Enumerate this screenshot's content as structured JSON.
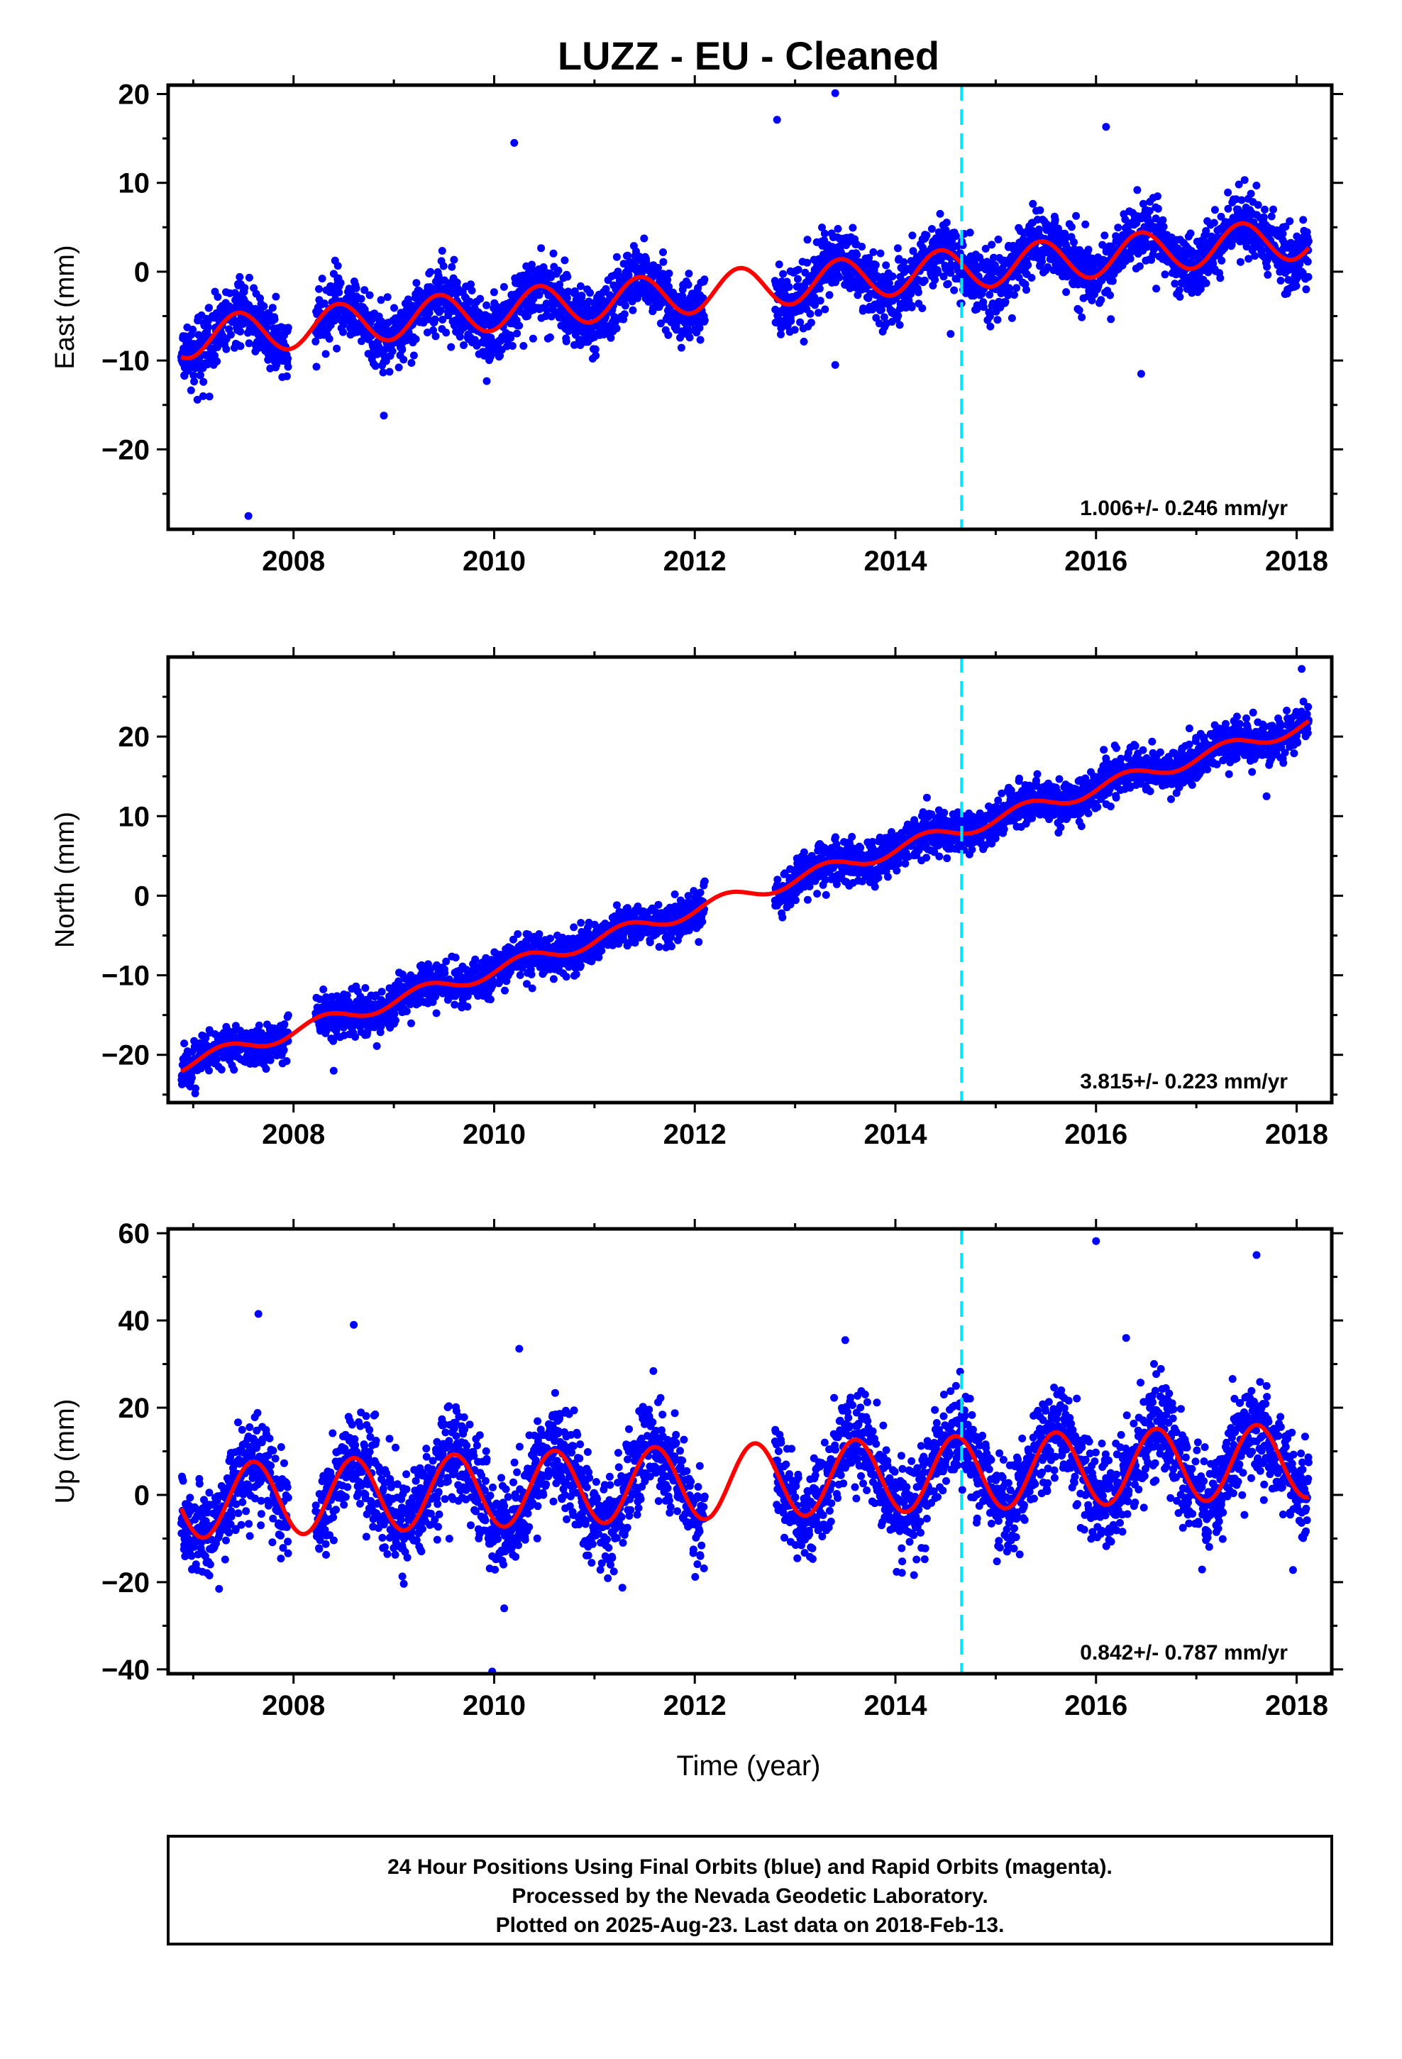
{
  "title": "LUZZ  - EU - Cleaned",
  "colors": {
    "observations": "#0000ff",
    "model": "#ff0000",
    "marker": "#00e5ff",
    "frame": "#000000"
  },
  "chart_data": [
    {
      "type": "scatter",
      "component": "East",
      "ylabel": "East (mm)",
      "xlim": [
        2006.75,
        2018.35
      ],
      "ylim": [
        -29,
        21
      ],
      "yticks": [
        -20,
        -10,
        0,
        10,
        20
      ],
      "xticks": [
        2008,
        2010,
        2012,
        2014,
        2016,
        2018
      ],
      "rate_label": "1.006+/- 0.246 mm/yr",
      "vertical_line_x": 2014.66,
      "model": {
        "base": -7.5,
        "rate": 1.006,
        "amplitude": 2.3,
        "peak_year_fraction": 0.45
      },
      "data_segments": [
        [
          2006.88,
          2007.95
        ],
        [
          2008.22,
          2012.1
        ],
        [
          2012.8,
          2018.12
        ]
      ],
      "noise_sd": 1.8,
      "outliers": [
        [
          2007.55,
          -27.5
        ],
        [
          2012.82,
          17.1
        ],
        [
          2013.4,
          20.1
        ],
        [
          2010.2,
          14.5
        ],
        [
          2016.1,
          16.3
        ],
        [
          2016.45,
          -11.5
        ],
        [
          2013.4,
          -10.5
        ],
        [
          2014.55,
          -7
        ],
        [
          2008.9,
          -16.2
        ]
      ]
    },
    {
      "type": "scatter",
      "component": "North",
      "ylabel": "North (mm)",
      "xlim": [
        2006.75,
        2018.35
      ],
      "ylim": [
        -26,
        30
      ],
      "yticks": [
        -20,
        -10,
        0,
        10,
        20
      ],
      "xticks": [
        2008,
        2010,
        2012,
        2014,
        2016,
        2018
      ],
      "rate_label": "3.815+/- 0.223 mm/yr",
      "vertical_line_x": 2014.66,
      "model": {
        "base": -21.3,
        "rate": 3.815,
        "amplitude": 0.9,
        "peak_year_fraction": 0.3
      },
      "data_segments": [
        [
          2006.88,
          2007.95
        ],
        [
          2008.22,
          2012.1
        ],
        [
          2012.8,
          2018.12
        ]
      ],
      "noise_sd": 1.3,
      "outliers": [
        [
          2018.05,
          28.5
        ],
        [
          2017.7,
          12.5
        ],
        [
          2014.7,
          8.5
        ],
        [
          2008.4,
          -22
        ]
      ]
    },
    {
      "type": "scatter",
      "component": "Up",
      "ylabel": "Up (mm)",
      "xlabel": "Time (year)",
      "xlim": [
        2006.75,
        2018.35
      ],
      "ylim": [
        -41,
        61
      ],
      "yticks": [
        -40,
        -20,
        0,
        20,
        40,
        60
      ],
      "xticks": [
        2008,
        2010,
        2012,
        2014,
        2016,
        2018
      ],
      "rate_label": "0.842+/- 0.787 mm/yr",
      "vertical_line_x": 2014.66,
      "model": {
        "base": -1.5,
        "rate": 0.842,
        "amplitude": 8.5,
        "peak_year_fraction": 0.6
      },
      "data_segments": [
        [
          2006.88,
          2007.95
        ],
        [
          2008.22,
          2012.1
        ],
        [
          2012.8,
          2018.12
        ]
      ],
      "noise_sd": 5.5,
      "outliers": [
        [
          2016.0,
          58.2
        ],
        [
          2017.6,
          55
        ],
        [
          2009.98,
          -40.5
        ],
        [
          2007.65,
          41.5
        ],
        [
          2008.6,
          39
        ],
        [
          2013.5,
          35.5
        ],
        [
          2016.3,
          36
        ],
        [
          2010.1,
          -26
        ],
        [
          2010.25,
          33.5
        ]
      ]
    }
  ],
  "footer": {
    "line1": "24 Hour Positions Using Final Orbits (blue) and Rapid Orbits (magenta).",
    "line2": "Processed by the Nevada Geodetic Laboratory.",
    "line3": "Plotted on 2025-Aug-23. Last data on 2018-Feb-13."
  }
}
